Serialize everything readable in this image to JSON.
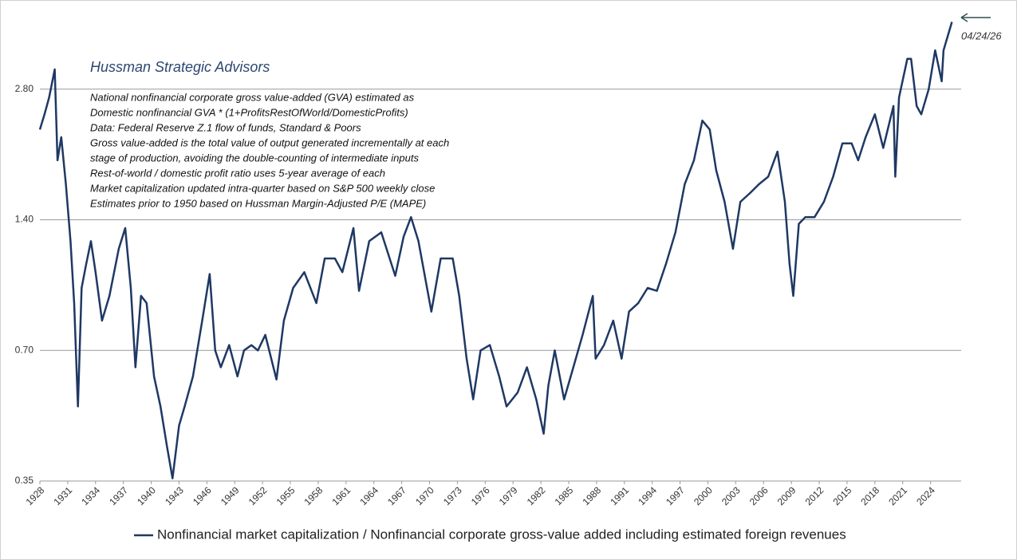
{
  "chart_data": {
    "type": "line",
    "title": "Hussman Strategic Advisors",
    "notes": [
      "National nonfinancial corporate gross value-added  (GVA) estimated as",
      "Domestic nonfinancial GVA * (1+ProfitsRestOfWorld/DomesticProfits)",
      "Data: Federal Reserve Z.1 flow of funds, Standard & Poors",
      "Gross value-added is the total value of output generated  incrementally at each",
      "stage of production, avoiding the double-counting  of intermediate inputs",
      "Rest-of-world / domestic profit ratio uses 5-year average of each",
      "Market capitalization updated intra-quarter based on S&P 500 weekly close",
      "Estimates prior to 1950 based on Hussman Margin-Adjusted  P/E (MAPE)"
    ],
    "annotation": "04/24/26",
    "x": [
      1928.0,
      1928.5,
      1929.0,
      1929.6,
      1929.9,
      1930.3,
      1930.8,
      1931.3,
      1931.7,
      1932.1,
      1932.5,
      1933.0,
      1933.5,
      1934.0,
      1934.7,
      1935.5,
      1936.5,
      1937.2,
      1937.8,
      1938.3,
      1938.9,
      1939.5,
      1940.3,
      1941.0,
      1941.7,
      1942.3,
      1943.0,
      1943.6,
      1944.5,
      1945.5,
      1946.3,
      1946.9,
      1947.5,
      1948.4,
      1949.3,
      1950.0,
      1950.8,
      1951.5,
      1952.3,
      1953.5,
      1954.3,
      1955.3,
      1956.5,
      1957.8,
      1958.7,
      1959.8,
      1960.6,
      1961.8,
      1962.4,
      1963.5,
      1964.8,
      1966.3,
      1967.2,
      1968.0,
      1968.8,
      1970.2,
      1971.2,
      1972.5,
      1973.2,
      1974.0,
      1974.7,
      1975.5,
      1976.5,
      1977.5,
      1978.3,
      1979.5,
      1980.5,
      1981.5,
      1982.3,
      1982.8,
      1983.5,
      1984.5,
      1985.5,
      1986.5,
      1987.6,
      1987.9,
      1988.8,
      1989.8,
      1990.7,
      1991.5,
      1992.5,
      1993.5,
      1994.5,
      1995.5,
      1996.5,
      1997.5,
      1998.5,
      1999.4,
      2000.2,
      2000.9,
      2001.8,
      2002.7,
      2003.5,
      2004.5,
      2005.5,
      2006.5,
      2007.5,
      2008.3,
      2008.8,
      2009.2,
      2009.8,
      2010.5,
      2011.5,
      2012.5,
      2013.5,
      2014.5,
      2015.5,
      2016.2,
      2017.0,
      2018.0,
      2018.9,
      2020.0,
      2020.2,
      2020.6,
      2021.5,
      2021.9,
      2022.5,
      2023.0,
      2023.8,
      2024.5,
      2025.2,
      2025.4,
      2026.3
    ],
    "series": [
      {
        "name": "Nonfinancial market capitalization / Nonfinancial corporate gross-value added including estimated foreign revenues",
        "color": "#1f3864",
        "values": [
          2.26,
          2.45,
          2.68,
          3.11,
          1.92,
          2.17,
          1.69,
          1.25,
          0.898,
          0.52,
          0.975,
          1.11,
          1.25,
          1.06,
          0.82,
          0.935,
          1.2,
          1.34,
          0.975,
          0.64,
          0.935,
          0.9,
          0.61,
          0.52,
          0.42,
          0.355,
          0.47,
          0.52,
          0.61,
          0.82,
          1.05,
          0.7,
          0.64,
          0.72,
          0.61,
          0.7,
          0.72,
          0.7,
          0.76,
          0.6,
          0.82,
          0.975,
          1.06,
          0.9,
          1.14,
          1.14,
          1.06,
          1.34,
          0.96,
          1.25,
          1.31,
          1.04,
          1.28,
          1.42,
          1.25,
          0.86,
          1.14,
          1.14,
          0.935,
          0.67,
          0.54,
          0.7,
          0.72,
          0.61,
          0.52,
          0.56,
          0.64,
          0.54,
          0.45,
          0.58,
          0.7,
          0.54,
          0.64,
          0.76,
          0.935,
          0.67,
          0.72,
          0.82,
          0.67,
          0.86,
          0.9,
          0.975,
          0.96,
          1.11,
          1.31,
          1.69,
          1.92,
          2.37,
          2.26,
          1.82,
          1.54,
          1.2,
          1.54,
          1.61,
          1.69,
          1.76,
          2.01,
          1.54,
          1.11,
          0.935,
          1.37,
          1.42,
          1.42,
          1.54,
          1.76,
          2.1,
          2.1,
          1.92,
          2.17,
          2.45,
          2.05,
          2.56,
          1.76,
          2.68,
          3.29,
          3.29,
          2.56,
          2.45,
          2.8,
          3.44,
          2.92,
          3.44,
          4.0
        ]
      }
    ],
    "xlim": [
      1928,
      2027.3
    ],
    "xticks": [
      1928,
      1931,
      1934,
      1937,
      1940,
      1943,
      1946,
      1949,
      1952,
      1955,
      1958,
      1961,
      1964,
      1967,
      1970,
      1973,
      1976,
      1979,
      1982,
      1985,
      1988,
      1991,
      1994,
      1997,
      2000,
      2003,
      2006,
      2009,
      2012,
      2015,
      2018,
      2021,
      2024
    ],
    "ylim": [
      0.35,
      4.4
    ],
    "yticks": [
      {
        "value": 0.35,
        "label": "0.35"
      },
      {
        "value": 0.7,
        "label": "0.70"
      },
      {
        "value": 1.4,
        "label": "1.40"
      },
      {
        "value": 2.8,
        "label": "2.80"
      }
    ],
    "log_scale": true,
    "grid": true,
    "legend": "bottom"
  }
}
